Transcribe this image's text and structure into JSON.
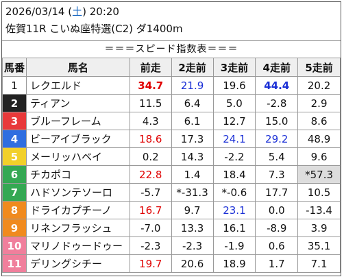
{
  "header": {
    "date": "2026/03/14",
    "dow_open": " (",
    "dow": "土",
    "dow_close": ")",
    "time": " 20:20",
    "race_info": "佐賀11R こいぬ座特選(C2) ダ1400m"
  },
  "table_title": "＝＝＝スピード指数表＝＝＝",
  "columns": [
    "馬番",
    "馬名",
    "前走",
    "2走前",
    "3走前",
    "4走前",
    "5走前"
  ],
  "colors": {
    "frame_1": "#ffffff",
    "frame_2": "#222222",
    "frame_3": "#e8393a",
    "frame_4": "#2f6ee0",
    "frame_5": "#f2d02a",
    "frame_6": "#34a853",
    "frame_7": "#f08a1e",
    "frame_8": "#f08a1e",
    "frame_9": "#f07f9c",
    "frame_10": "#f07f9c",
    "frame_11": "#f07f9c",
    "red_value": "#e00000",
    "blue_value": "#1a2fd6"
  },
  "rows": [
    {
      "num": "1",
      "name": "レクエルド",
      "frame_color": "#ffffff",
      "num_text_color": "#111111",
      "vals": [
        {
          "t": "34.7",
          "c": "red",
          "b": true
        },
        {
          "t": "21.9",
          "c": "blue"
        },
        {
          "t": "19.6"
        },
        {
          "t": "44.4",
          "c": "blue",
          "b": true
        },
        {
          "t": "20.2"
        }
      ]
    },
    {
      "num": "2",
      "name": "ティアン",
      "frame_color": "#222222",
      "num_text_color": "#ffffff",
      "vals": [
        {
          "t": "11.5"
        },
        {
          "t": "6.4"
        },
        {
          "t": "5.0"
        },
        {
          "t": "-2.8"
        },
        {
          "t": "2.9"
        }
      ]
    },
    {
      "num": "3",
      "name": "ブルーフレーム",
      "frame_color": "#e8393a",
      "num_text_color": "#ffffff",
      "vals": [
        {
          "t": "4.3"
        },
        {
          "t": "6.1"
        },
        {
          "t": "12.7"
        },
        {
          "t": "15.0"
        },
        {
          "t": "8.6"
        }
      ]
    },
    {
      "num": "4",
      "name": "ビーアイブラック",
      "frame_color": "#2f6ee0",
      "num_text_color": "#ffffff",
      "vals": [
        {
          "t": "18.6",
          "c": "red"
        },
        {
          "t": "17.3"
        },
        {
          "t": "24.1",
          "c": "blue"
        },
        {
          "t": "29.2",
          "c": "blue"
        },
        {
          "t": "48.9"
        }
      ]
    },
    {
      "num": "5",
      "name": "メーリッハベイ",
      "frame_color": "#f2d02a",
      "num_text_color": "#ffffff",
      "vals": [
        {
          "t": "0.2"
        },
        {
          "t": "14.3"
        },
        {
          "t": "-2.2"
        },
        {
          "t": "5.4"
        },
        {
          "t": "9.6"
        }
      ]
    },
    {
      "num": "6",
      "name": "チカポコ",
      "frame_color": "#34a853",
      "num_text_color": "#ffffff",
      "vals": [
        {
          "t": "22.8",
          "c": "red"
        },
        {
          "t": "1.4"
        },
        {
          "t": "18.4"
        },
        {
          "t": "7.3"
        },
        {
          "t": "*57.3",
          "hi": true
        }
      ]
    },
    {
      "num": "7",
      "name": "ハドソンテソーロ",
      "frame_color": "#34a853",
      "num_text_color": "#ffffff",
      "vals": [
        {
          "t": "-5.7"
        },
        {
          "t": "*-31.3"
        },
        {
          "t": "*-0.6"
        },
        {
          "t": "17.7"
        },
        {
          "t": "10.5"
        }
      ]
    },
    {
      "num": "8",
      "name": "ドライカプチーノ",
      "frame_color": "#f08a1e",
      "num_text_color": "#ffffff",
      "vals": [
        {
          "t": "16.7",
          "c": "red"
        },
        {
          "t": "9.7"
        },
        {
          "t": "23.1",
          "c": "blue"
        },
        {
          "t": "0.0"
        },
        {
          "t": "-13.4"
        }
      ]
    },
    {
      "num": "9",
      "name": "リネンフラッシュ",
      "frame_color": "#f08a1e",
      "num_text_color": "#ffffff",
      "vals": [
        {
          "t": "-7.0"
        },
        {
          "t": "13.3"
        },
        {
          "t": "16.1"
        },
        {
          "t": "-8.9"
        },
        {
          "t": "3.9"
        }
      ]
    },
    {
      "num": "10",
      "name": "マリノドゥードゥー",
      "frame_color": "#f07f9c",
      "num_text_color": "#ffffff",
      "vals": [
        {
          "t": "-2.3"
        },
        {
          "t": "-2.3"
        },
        {
          "t": "-1.9"
        },
        {
          "t": "0.6"
        },
        {
          "t": "35.1"
        }
      ]
    },
    {
      "num": "11",
      "name": "デリングシチー",
      "frame_color": "#f07f9c",
      "num_text_color": "#ffffff",
      "vals": [
        {
          "t": "19.7",
          "c": "red"
        },
        {
          "t": "20.6"
        },
        {
          "t": "18.9"
        },
        {
          "t": "1.7"
        },
        {
          "t": "7.1"
        }
      ]
    }
  ]
}
